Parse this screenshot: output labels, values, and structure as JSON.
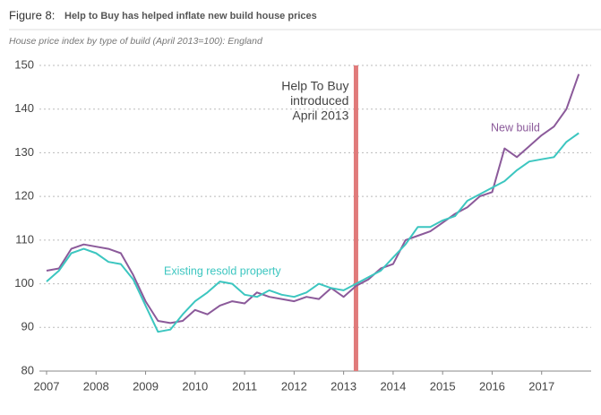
{
  "chart_data": {
    "type": "line",
    "figure_label": "Figure 8:",
    "title": "Help to Buy has helped inflate new build house prices",
    "subtitle": "House price index by type of build (April 2013=100): England",
    "x": [
      2007.0,
      2007.25,
      2007.5,
      2007.75,
      2008.0,
      2008.25,
      2008.5,
      2008.75,
      2009.0,
      2009.25,
      2009.5,
      2009.75,
      2010.0,
      2010.25,
      2010.5,
      2010.75,
      2011.0,
      2011.25,
      2011.5,
      2011.75,
      2012.0,
      2012.25,
      2012.5,
      2012.75,
      2013.0,
      2013.25,
      2013.5,
      2013.75,
      2014.0,
      2014.25,
      2014.5,
      2014.75,
      2015.0,
      2015.25,
      2015.5,
      2015.75,
      2016.0,
      2016.25,
      2016.5,
      2016.75,
      2017.0,
      2017.25,
      2017.5,
      2017.75
    ],
    "series": [
      {
        "name": "New build",
        "color": "#8b5a9a",
        "values": [
          103,
          103.5,
          108,
          109,
          108.5,
          108,
          107,
          102,
          96,
          91.5,
          91,
          91.5,
          94,
          93,
          95,
          96,
          95.5,
          98,
          97,
          96.5,
          96,
          97,
          96.5,
          99,
          97,
          99.5,
          101,
          103.5,
          104.5,
          110,
          111,
          112,
          114,
          116,
          117.5,
          120,
          121,
          131,
          129,
          131.5,
          134,
          136,
          140,
          148
        ]
      },
      {
        "name": "Existing resold property",
        "color": "#3cc6c0",
        "values": [
          100.5,
          103,
          107,
          108,
          107,
          105,
          104.5,
          101,
          95,
          89,
          89.5,
          93,
          96,
          98,
          100.5,
          100,
          97.5,
          97,
          98.5,
          97.5,
          97,
          98,
          100,
          99,
          98.5,
          100,
          101.5,
          103,
          106,
          109,
          113,
          113,
          114.5,
          115.5,
          119,
          120.5,
          122,
          123.5,
          126,
          128,
          128.5,
          129,
          132.5,
          134.5
        ]
      }
    ],
    "annotation": {
      "lines": [
        "Help To Buy",
        "introduced",
        "April 2013"
      ],
      "x": 2013.25,
      "color": "#e07b7b"
    },
    "xlim": [
      2007,
      2018
    ],
    "xticks": [
      2007,
      2008,
      2009,
      2010,
      2011,
      2012,
      2013,
      2014,
      2015,
      2016,
      2017
    ],
    "ylim": [
      80,
      150
    ],
    "yticks": [
      80,
      90,
      100,
      110,
      120,
      130,
      140,
      150
    ],
    "grid": true
  }
}
